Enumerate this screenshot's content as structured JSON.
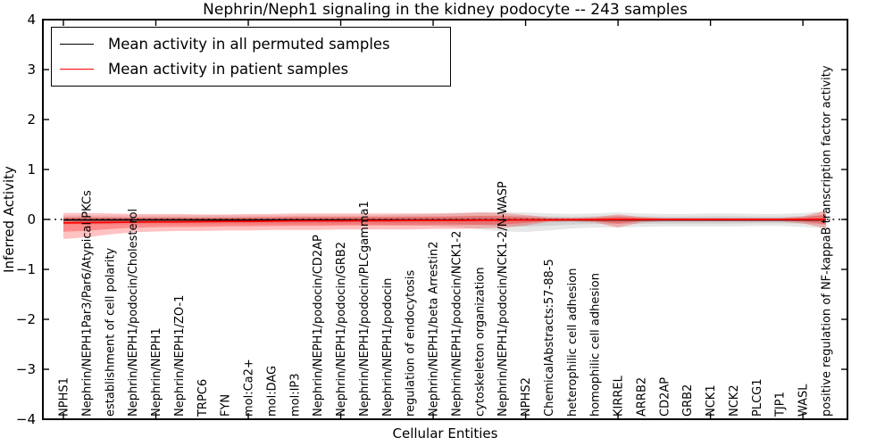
{
  "chart_data": {
    "type": "line",
    "title": "Nephrin/Neph1 signaling in the kidney podocyte -- 243 samples",
    "xlabel": "Cellular Entities",
    "ylabel": "Inferred Activity",
    "ylim": [
      -4,
      4
    ],
    "yticks": [
      -4,
      -3,
      -2,
      -1,
      0,
      1,
      2,
      3,
      4
    ],
    "grid": false,
    "legend_position": "upper left",
    "zero_line": {
      "value": 0,
      "style": "dotted",
      "color": "#000000"
    },
    "categories": [
      "NPHS1",
      "Nephrin/NEPH1Par3/Par6/Atypical PKCs",
      "establishment of cell polarity",
      "Nephrin/NEPH1/podocin/Cholesterol",
      "Nephrin/NEPH1",
      "Nephrin/NEPH1/ZO-1",
      "TRPC6",
      "FYN",
      "mol:Ca2+",
      "mol:DAG",
      "mol:IP3",
      "Nephrin/NEPH1/podocin/CD2AP",
      "Nephrin/NEPH1/podocin/GRB2",
      "Nephrin/NEPH1/podocin/PLCgamma1",
      "Nephrin/NEPH1/podocin",
      "regulation of endocytosis",
      "Nephrin/NEPH1/beta Arrestin2",
      "Nephrin/NEPH1/podocin/NCK1-2",
      "cytoskeleton organization",
      "Nephrin/NEPH1/podocin/NCK1-2/N-WASP",
      "NPHS2",
      "ChemicalAbstracts:57-88-5",
      "heterophilic cell adhesion",
      "homophilic cell adhesion",
      "KIRREL",
      "ARRB2",
      "CD2AP",
      "GRB2",
      "NCK1",
      "NCK2",
      "PLCG1",
      "TJP1",
      "WASL",
      "positive regulation of NF-kappaB transcription factor activity"
    ],
    "legend": [
      {
        "label": "Mean activity in all permuted samples",
        "color": "#000000"
      },
      {
        "label": "Mean activity in patient samples",
        "color": "#ff0000"
      }
    ],
    "series": [
      {
        "key": "permuted",
        "name": "Mean activity in all permuted samples",
        "color": "#000000",
        "values": [
          -0.01,
          -0.01,
          -0.01,
          -0.01,
          -0.01,
          -0.01,
          -0.01,
          -0.01,
          -0.01,
          -0.01,
          -0.01,
          -0.01,
          -0.01,
          -0.01,
          -0.01,
          -0.01,
          -0.01,
          -0.01,
          -0.01,
          -0.01,
          -0.01,
          -0.01,
          -0.01,
          -0.01,
          -0.01,
          -0.01,
          -0.01,
          -0.01,
          -0.01,
          -0.01,
          -0.01,
          -0.01,
          -0.01,
          -0.01
        ]
      },
      {
        "key": "patient",
        "name": "Mean activity in patient samples",
        "color": "#ff0000",
        "values": [
          -0.07,
          -0.065,
          -0.06,
          -0.055,
          -0.05,
          -0.05,
          -0.045,
          -0.04,
          -0.04,
          -0.035,
          -0.03,
          -0.03,
          -0.03,
          -0.025,
          -0.025,
          -0.02,
          -0.02,
          -0.02,
          -0.015,
          -0.015,
          -0.01,
          -0.01,
          -0.005,
          -0.005,
          0,
          0,
          0,
          0,
          0,
          0,
          0,
          0,
          0,
          0
        ]
      }
    ],
    "bands": [
      {
        "key": "permuted-spread",
        "series": 0,
        "color": "#999999",
        "upper": [
          0.08,
          0.08,
          0.08,
          0.08,
          0.08,
          0.08,
          0.08,
          0.08,
          0.08,
          0.08,
          0.08,
          0.08,
          0.08,
          0.08,
          0.09,
          0.1,
          0.11,
          0.12,
          0.14,
          0.15,
          0.14,
          0.12,
          0.11,
          0.12,
          0.14,
          0.12,
          0.11,
          0.11,
          0.12,
          0.12,
          0.11,
          0.11,
          0.13,
          0.16
        ],
        "lower": [
          -0.1,
          -0.1,
          -0.1,
          -0.1,
          -0.1,
          -0.1,
          -0.1,
          -0.1,
          -0.1,
          -0.1,
          -0.1,
          -0.1,
          -0.1,
          -0.1,
          -0.11,
          -0.12,
          -0.13,
          -0.15,
          -0.2,
          -0.24,
          -0.25,
          -0.22,
          -0.18,
          -0.16,
          -0.16,
          -0.15,
          -0.14,
          -0.14,
          -0.14,
          -0.14,
          -0.13,
          -0.13,
          -0.15,
          -0.18
        ]
      },
      {
        "key": "patient-spread",
        "series": 1,
        "color": "#ff0000",
        "upper": [
          0.13,
          0.13,
          0.12,
          0.11,
          0.11,
          0.11,
          0.1,
          0.1,
          0.11,
          0.11,
          0.12,
          0.12,
          0.12,
          0.12,
          0.12,
          0.12,
          0.12,
          0.13,
          0.14,
          0.13,
          0.09,
          0.04,
          0.03,
          0.05,
          0.1,
          0.05,
          0.03,
          0.03,
          0.03,
          0.03,
          0.03,
          0.03,
          0.06,
          0.18
        ],
        "lower": [
          -0.39,
          -0.36,
          -0.3,
          -0.26,
          -0.24,
          -0.23,
          -0.23,
          -0.22,
          -0.22,
          -0.21,
          -0.21,
          -0.21,
          -0.2,
          -0.2,
          -0.2,
          -0.2,
          -0.19,
          -0.19,
          -0.18,
          -0.17,
          -0.12,
          -0.05,
          -0.04,
          -0.06,
          -0.16,
          -0.06,
          -0.04,
          -0.04,
          -0.04,
          -0.04,
          -0.04,
          -0.04,
          -0.08,
          -0.18
        ]
      }
    ]
  }
}
